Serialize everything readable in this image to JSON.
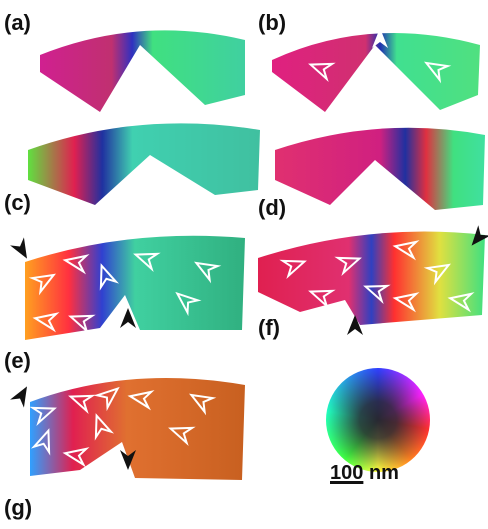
{
  "panel_labels": [
    "(a)",
    "(b)",
    "(c)",
    "(d)",
    "(e)",
    "(f)",
    "(g)"
  ],
  "scale_bar": {
    "length": "100",
    "unit": "nm"
  }
}
